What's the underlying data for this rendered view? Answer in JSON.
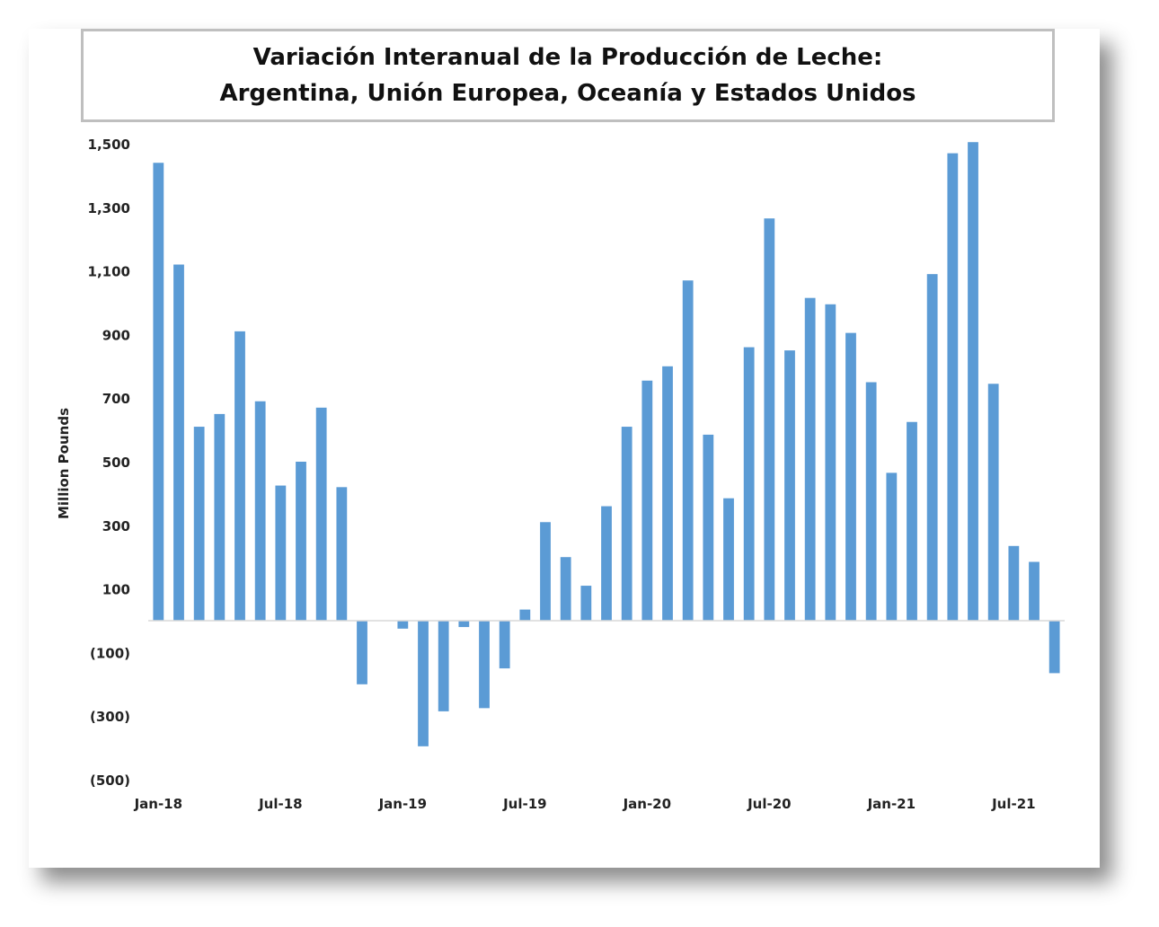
{
  "title_line1": "Variación Interanual de la Producción de Leche:",
  "title_line2": "Argentina, Unión Europea, Oceanía y Estados Unidos",
  "chart_data": {
    "type": "bar",
    "ylabel": "Million Pounds",
    "xlabel": "",
    "ylim": [
      -500,
      1500
    ],
    "yticks": [
      1500,
      1300,
      1100,
      900,
      700,
      500,
      300,
      100,
      -100,
      -300,
      -500
    ],
    "ytick_labels": [
      "1,500",
      "1,300",
      "1,100",
      "900",
      "700",
      "500",
      "300",
      "100",
      "(100)",
      "(300)",
      "(500)"
    ],
    "categories": [
      "Jan-18",
      "Feb-18",
      "Mar-18",
      "Apr-18",
      "May-18",
      "Jun-18",
      "Jul-18",
      "Aug-18",
      "Sep-18",
      "Oct-18",
      "Nov-18",
      "Dec-18",
      "Jan-19",
      "Feb-19",
      "Mar-19",
      "Apr-19",
      "May-19",
      "Jun-19",
      "Jul-19",
      "Aug-19",
      "Sep-19",
      "Oct-19",
      "Nov-19",
      "Dec-19",
      "Jan-20",
      "Feb-20",
      "Mar-20",
      "Apr-20",
      "May-20",
      "Jun-20",
      "Jul-20",
      "Aug-20",
      "Sep-20",
      "Oct-20",
      "Nov-20",
      "Dec-20",
      "Jan-21",
      "Feb-21",
      "Mar-21",
      "Apr-21",
      "May-21",
      "Jun-21",
      "Jul-21",
      "Aug-21",
      "Sep-21"
    ],
    "xtick_labels": [
      "Jan-18",
      "Jul-18",
      "Jan-19",
      "Jul-19",
      "Jan-20",
      "Jul-20",
      "Jan-21",
      "Jul-21"
    ],
    "values": [
      1440,
      1120,
      610,
      650,
      910,
      690,
      425,
      500,
      670,
      420,
      -200,
      0,
      -25,
      -395,
      -285,
      -20,
      -275,
      -150,
      35,
      310,
      200,
      110,
      360,
      610,
      755,
      800,
      1070,
      585,
      385,
      860,
      1265,
      850,
      1015,
      995,
      905,
      750,
      465,
      625,
      1090,
      1470,
      1505,
      745,
      235,
      185,
      -165
    ],
    "color": "#5b9bd5",
    "grid": false,
    "legend": "none"
  }
}
